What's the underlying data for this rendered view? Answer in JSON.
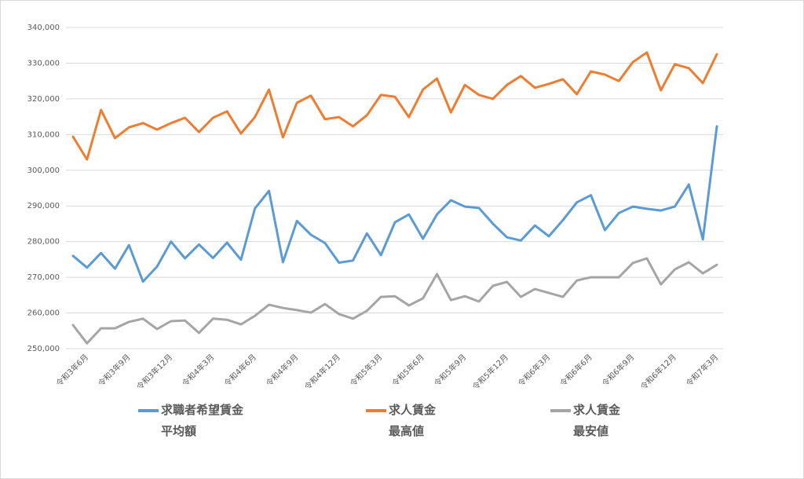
{
  "chart_data": {
    "type": "line",
    "categories": [
      null,
      "令和3年6月",
      null,
      null,
      "令和3年9月",
      null,
      null,
      "令和3年12月",
      null,
      null,
      "令和4年3月",
      null,
      null,
      "令和4年6月",
      null,
      null,
      "令和4年9月",
      null,
      null,
      "令和4年12月",
      null,
      null,
      "令和5年3月",
      null,
      null,
      "令和5年6月",
      null,
      null,
      "令和5年9月",
      null,
      null,
      "令和5年12月",
      null,
      null,
      "令和6年3月",
      null,
      null,
      "令和6年6月",
      null,
      null,
      "令和6年9月",
      null,
      null,
      "令和6年12月",
      null,
      null,
      "令和7年3月"
    ],
    "series": [
      {
        "name": "求職者希望賃金\n平均額",
        "color": "#5b9bd5",
        "values": [
          276000,
          272700,
          276800,
          272400,
          279000,
          268800,
          273000,
          280000,
          275300,
          279200,
          275400,
          279700,
          274900,
          289300,
          294200,
          274200,
          285800,
          281900,
          279600,
          274100,
          274700,
          282300,
          276200,
          285400,
          287600,
          280800,
          287600,
          291600,
          289800,
          289400,
          285000,
          281200,
          280300,
          284500,
          281500,
          286000,
          291000,
          293000,
          283200,
          288000,
          289800,
          289200,
          288700,
          289800,
          296000,
          280600,
          312300
        ]
      },
      {
        "name": "求人賃金\n最高値",
        "color": "#ed7d31",
        "values": [
          309400,
          303000,
          316900,
          309000,
          312000,
          313200,
          311400,
          313200,
          314700,
          310700,
          314700,
          316500,
          310300,
          314900,
          322600,
          309200,
          318900,
          320900,
          314300,
          314900,
          312300,
          315400,
          321100,
          320600,
          314900,
          322600,
          325700,
          316200,
          323900,
          321100,
          320000,
          323900,
          326400,
          323100,
          324200,
          325500,
          321300,
          327700,
          326800,
          325000,
          330300,
          333000,
          322400,
          329700,
          328600,
          324400,
          332500
        ]
      },
      {
        "name": "求人賃金\n最安値",
        "color": "#a5a5a5",
        "values": [
          256600,
          251500,
          255700,
          255700,
          257500,
          258400,
          255500,
          257700,
          257900,
          254400,
          258400,
          258100,
          256800,
          259200,
          262300,
          261400,
          260800,
          260100,
          262500,
          259700,
          258400,
          260600,
          264500,
          264700,
          262100,
          264100,
          270900,
          263600,
          264700,
          263200,
          267600,
          268700,
          264500,
          266700,
          265600,
          264500,
          269100,
          270000,
          270000,
          270000,
          274000,
          275300,
          268000,
          272200,
          274200,
          271100,
          273500
        ]
      }
    ],
    "ylim": [
      250000,
      340000
    ],
    "yticks": [
      {
        "value": 250000,
        "label": "250,000"
      },
      {
        "value": 260000,
        "label": "260,000"
      },
      {
        "value": 270000,
        "label": "270,000"
      },
      {
        "value": 280000,
        "label": "280,000"
      },
      {
        "value": 290000,
        "label": "290,000"
      },
      {
        "value": 300000,
        "label": "300,000"
      },
      {
        "value": 310000,
        "label": "310,000"
      },
      {
        "value": 320000,
        "label": "320,000"
      },
      {
        "value": 330000,
        "label": "330,000"
      },
      {
        "value": 340000,
        "label": "340,000"
      }
    ],
    "grid": true
  }
}
